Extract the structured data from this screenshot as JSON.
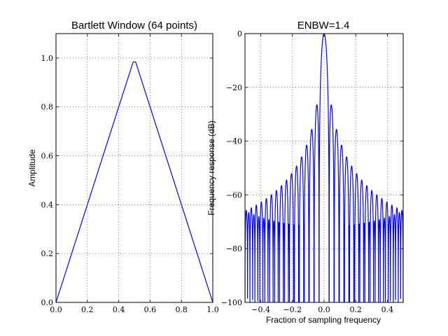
{
  "chart_data": [
    {
      "type": "line",
      "title": "Bartlett Window (64 points)",
      "xlabel": "",
      "ylabel": "Amplitude",
      "xlim": [
        0.0,
        1.0
      ],
      "ylim": [
        0.0,
        1.1
      ],
      "xticks": [
        0.0,
        0.2,
        0.4,
        0.6,
        0.8,
        1.0
      ],
      "xtick_labels": [
        "0.0",
        "0.2",
        "0.4",
        "0.6",
        "0.8",
        "1.0"
      ],
      "yticks": [
        0.0,
        0.2,
        0.4,
        0.6,
        0.8,
        1.0
      ],
      "ytick_labels": [
        "0.0",
        "0.2",
        "0.4",
        "0.6",
        "0.8",
        "1.0"
      ],
      "grid": true,
      "color": "#0000ff",
      "series": [
        {
          "x": [
            0.0,
            0.4921,
            0.5079,
            1.0
          ],
          "y": [
            0.0,
            0.9841,
            0.9841,
            0.0
          ]
        }
      ]
    },
    {
      "type": "line",
      "title": "ENBW=1.4",
      "xlabel": "Fraction of sampling frequency",
      "ylabel": "Frequency response (dB)",
      "xlim": [
        -0.5,
        0.5
      ],
      "ylim": [
        -100,
        0
      ],
      "xticks": [
        -0.4,
        -0.2,
        0.0,
        0.2,
        0.4
      ],
      "xtick_labels": [
        "−0.4",
        "−0.2",
        "0.0",
        "0.2",
        "0.4"
      ],
      "yticks": [
        0,
        -20,
        -40,
        -60,
        -80,
        -100
      ],
      "ytick_labels": [
        "0",
        "−20",
        "−40",
        "−60",
        "−80",
        "−100"
      ],
      "grid": true,
      "color": "#0000ff",
      "series": [
        {
          "x": [
            -0.5,
            0.5
          ],
          "y": [
            -65,
            -65
          ],
          "window": "bartlett",
          "window_points": 64,
          "floor_db": -100
        }
      ]
    }
  ]
}
